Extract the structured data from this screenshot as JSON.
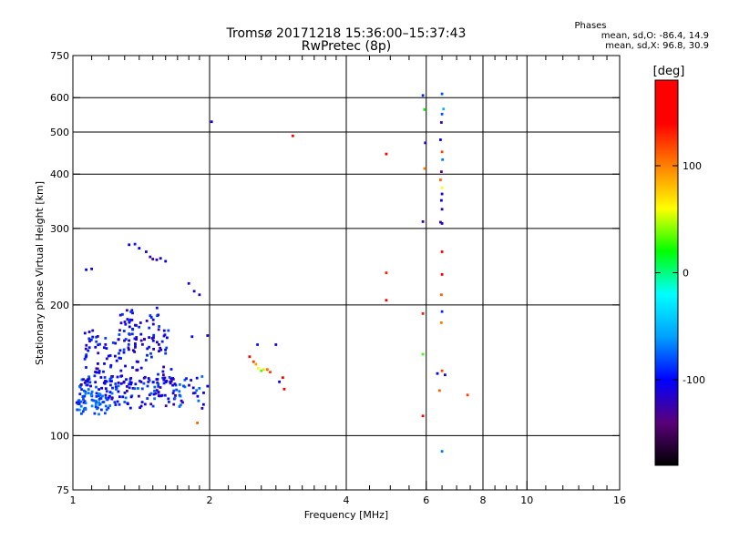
{
  "chart_data": {
    "type": "scatter",
    "title": "Tromsø 20171218 15:36:00–15:37:43",
    "subtitle": "RwPretec (8p)",
    "xlabel": "Frequency [MHz]",
    "ylabel": "Stationary phase Virtual Height [km]",
    "x_scale": "log",
    "y_scale": "log",
    "xlim": [
      1,
      16
    ],
    "ylim": [
      75,
      750
    ],
    "x_ticks": [
      "1",
      "2",
      "4",
      "6",
      "8",
      "10",
      "16"
    ],
    "x_tick_values": [
      1,
      2,
      4,
      6,
      8,
      10,
      16
    ],
    "y_ticks": [
      "75",
      "100",
      "200",
      "300",
      "400",
      "500",
      "600",
      "750"
    ],
    "y_tick_values": [
      75,
      100,
      200,
      300,
      400,
      500,
      600,
      750
    ],
    "x_grid_lines": [
      2,
      4,
      6,
      8,
      10
    ],
    "y_grid_lines": [
      100,
      200,
      300,
      400,
      500,
      600
    ],
    "x_minor_ticks": [
      1.1,
      1.2,
      1.3,
      1.4,
      1.5,
      1.6,
      1.7,
      1.8,
      1.9,
      2.2,
      2.4,
      2.6,
      2.8,
      3,
      3.2,
      3.4,
      3.6,
      3.8,
      4.5,
      5,
      5.5,
      6.5,
      7,
      7.5,
      8.5,
      9,
      9.5,
      11,
      12,
      13,
      14,
      15
    ],
    "grid": true,
    "colorbar": {
      "label": "[deg]",
      "range": [
        -180,
        180
      ],
      "ticks": [
        "100",
        "0",
        "-100"
      ],
      "tick_values": [
        100,
        0,
        -100
      ],
      "colors": [
        "#000000",
        "#5a007a",
        "#0000ff",
        "#00a0ff",
        "#00ffff",
        "#00ff00",
        "#ffff00",
        "#ff8000",
        "#ff0000",
        "#ff0000"
      ]
    },
    "stats_block": {
      "heading": "Phases",
      "line1": "mean, sd,O: -86.4, 14.9",
      "line2": "mean, sd,X:  96.8, 30.9"
    },
    "points": [
      {
        "f": 1.07,
        "h": 241,
        "p": -100
      },
      {
        "f": 1.1,
        "h": 242,
        "p": -110
      },
      {
        "f": 1.33,
        "h": 275,
        "p": -105
      },
      {
        "f": 1.37,
        "h": 276,
        "p": -95
      },
      {
        "f": 1.4,
        "h": 270,
        "p": -100
      },
      {
        "f": 1.45,
        "h": 265,
        "p": -110
      },
      {
        "f": 1.48,
        "h": 258,
        "p": -120
      },
      {
        "f": 1.5,
        "h": 255,
        "p": -125
      },
      {
        "f": 1.53,
        "h": 254,
        "p": -120
      },
      {
        "f": 1.56,
        "h": 256,
        "p": -110
      },
      {
        "f": 1.6,
        "h": 252,
        "p": -105
      },
      {
        "f": 1.8,
        "h": 224,
        "p": -110
      },
      {
        "f": 1.85,
        "h": 215,
        "p": -115
      },
      {
        "f": 1.9,
        "h": 211,
        "p": -120
      },
      {
        "f": 2.02,
        "h": 528,
        "p": -110
      },
      {
        "f": 3.05,
        "h": 490,
        "p": 140
      },
      {
        "f": 2.45,
        "h": 152,
        "p": 140
      },
      {
        "f": 2.5,
        "h": 148,
        "p": 120
      },
      {
        "f": 2.53,
        "h": 146,
        "p": 90
      },
      {
        "f": 2.56,
        "h": 143,
        "p": 60
      },
      {
        "f": 2.6,
        "h": 141,
        "p": 30
      },
      {
        "f": 2.63,
        "h": 142,
        "p": 70
      },
      {
        "f": 2.68,
        "h": 142,
        "p": 110
      },
      {
        "f": 2.72,
        "h": 140,
        "p": 120
      },
      {
        "f": 2.55,
        "h": 162,
        "p": -95
      },
      {
        "f": 2.8,
        "h": 162,
        "p": -110
      },
      {
        "f": 2.85,
        "h": 133,
        "p": -100
      },
      {
        "f": 2.9,
        "h": 136,
        "p": 140
      },
      {
        "f": 2.92,
        "h": 128,
        "p": 150
      },
      {
        "f": 1.88,
        "h": 107,
        "p": 110
      },
      {
        "f": 1.98,
        "h": 130,
        "p": -100
      },
      {
        "f": 1.98,
        "h": 170,
        "p": -110
      },
      {
        "f": 1.83,
        "h": 169,
        "p": -100
      },
      {
        "f": 4.9,
        "h": 445,
        "p": 140
      },
      {
        "f": 4.9,
        "h": 237,
        "p": 130
      },
      {
        "f": 4.9,
        "h": 205,
        "p": 155
      },
      {
        "f": 5.9,
        "h": 607,
        "p": -90
      },
      {
        "f": 5.95,
        "h": 563,
        "p": 20
      },
      {
        "f": 5.97,
        "h": 472,
        "p": -120
      },
      {
        "f": 5.95,
        "h": 412,
        "p": 100
      },
      {
        "f": 5.9,
        "h": 311,
        "p": -125
      },
      {
        "f": 5.9,
        "h": 191,
        "p": 130
      },
      {
        "f": 5.9,
        "h": 154,
        "p": 30
      },
      {
        "f": 5.9,
        "h": 111,
        "p": 165
      },
      {
        "f": 6.5,
        "h": 612,
        "p": -80
      },
      {
        "f": 6.55,
        "h": 565,
        "p": -50
      },
      {
        "f": 6.5,
        "h": 550,
        "p": -80
      },
      {
        "f": 6.48,
        "h": 526,
        "p": -125
      },
      {
        "f": 6.45,
        "h": 480,
        "p": -100
      },
      {
        "f": 6.5,
        "h": 450,
        "p": 120
      },
      {
        "f": 6.52,
        "h": 432,
        "p": -70
      },
      {
        "f": 6.48,
        "h": 405,
        "p": -140
      },
      {
        "f": 6.45,
        "h": 388,
        "p": 110
      },
      {
        "f": 6.5,
        "h": 372,
        "p": 60
      },
      {
        "f": 6.5,
        "h": 360,
        "p": -110
      },
      {
        "f": 6.48,
        "h": 348,
        "p": -100
      },
      {
        "f": 6.5,
        "h": 332,
        "p": -125
      },
      {
        "f": 6.45,
        "h": 310,
        "p": -130
      },
      {
        "f": 6.5,
        "h": 308,
        "p": -110
      },
      {
        "f": 6.5,
        "h": 265,
        "p": 150
      },
      {
        "f": 6.5,
        "h": 235,
        "p": 150
      },
      {
        "f": 6.48,
        "h": 211,
        "p": 110
      },
      {
        "f": 6.5,
        "h": 193,
        "p": -90
      },
      {
        "f": 6.48,
        "h": 182,
        "p": 100
      },
      {
        "f": 6.5,
        "h": 141,
        "p": 120
      },
      {
        "f": 6.6,
        "h": 138,
        "p": -110
      },
      {
        "f": 6.35,
        "h": 139,
        "p": -100
      },
      {
        "f": 6.42,
        "h": 127,
        "p": 110
      },
      {
        "f": 6.5,
        "h": 92,
        "p": -70
      },
      {
        "f": 7.4,
        "h": 124,
        "p": 120
      }
    ],
    "cloud_regions": [
      {
        "f_min": 1.02,
        "f_max": 1.95,
        "h_min": 115,
        "h_max": 137,
        "points": 170,
        "p_min": -130,
        "p_max": -70,
        "seed": 11
      },
      {
        "f_min": 1.05,
        "f_max": 1.65,
        "h_min": 130,
        "h_max": 175,
        "points": 150,
        "p_min": -125,
        "p_max": -80,
        "seed": 23
      },
      {
        "f_min": 1.25,
        "f_max": 1.55,
        "h_min": 165,
        "h_max": 197,
        "points": 40,
        "p_min": -120,
        "p_max": -85,
        "seed": 37
      },
      {
        "f_min": 1.02,
        "f_max": 1.22,
        "h_min": 112,
        "h_max": 125,
        "points": 45,
        "p_min": -90,
        "p_max": -65,
        "seed": 41
      }
    ]
  }
}
